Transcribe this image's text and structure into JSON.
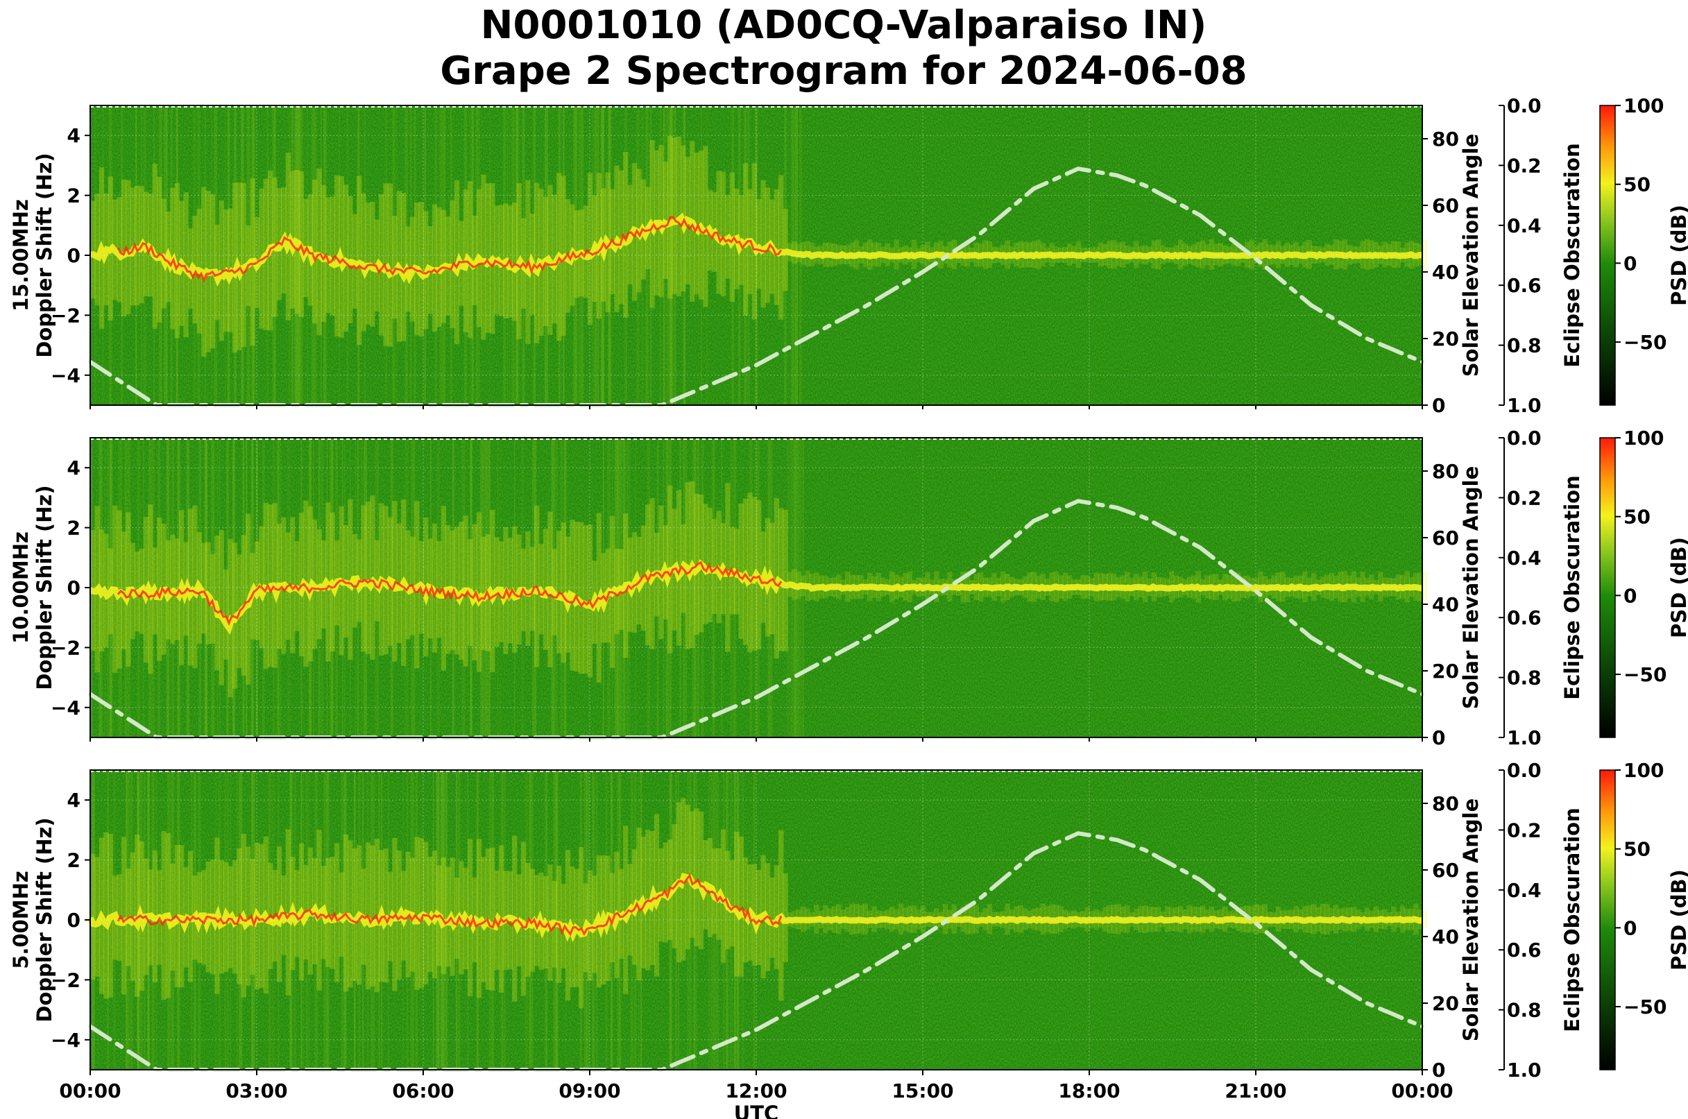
{
  "title": {
    "line1": "N0001010 (AD0CQ-Valparaiso IN)",
    "line2": "Grape 2 Spectrogram for 2024-06-08"
  },
  "colors": {
    "background_green": "#1e8a0a",
    "ridge_yellow": "#f2f21e",
    "peak_red": "#ff2a0a",
    "solar_curve": "#d4e8c8"
  },
  "chart_data": [
    {
      "type": "heatmap",
      "frequency_label": "15.00MHz",
      "ylabel": "15.00MHz\nDoppler Shift (Hz)",
      "ylabel_line1": "15.00MHz",
      "ylabel_line2": "Doppler Shift (Hz)",
      "xlabel": "",
      "ylim": [
        -5,
        5
      ],
      "yticks": [
        "4",
        "2",
        "0",
        "−2",
        "−4"
      ],
      "ytick_values": [
        4,
        2,
        0,
        -2,
        -4
      ],
      "right_axis": {
        "label": "Solar Elevation Angle",
        "ylim": [
          0,
          90
        ],
        "ticks": [
          "80",
          "60",
          "40",
          "20",
          "0"
        ],
        "tick_values": [
          80,
          60,
          40,
          20,
          0
        ]
      },
      "eclipse_axis": {
        "label": "Eclipse Obscuration",
        "ylim": [
          0.0,
          1.0
        ],
        "ticks": [
          "0.0",
          "0.2",
          "0.4",
          "0.6",
          "0.8",
          "1.0"
        ]
      },
      "colorbar": {
        "label": "PSD (dB)",
        "range": [
          -90,
          100
        ],
        "ticks": [
          "100",
          "50",
          "0",
          "−50"
        ],
        "tick_values": [
          100,
          50,
          0,
          -50
        ]
      },
      "doppler_trace_hz": [
        [
          0.5,
          0.1
        ],
        [
          1.0,
          0.3
        ],
        [
          1.5,
          -0.3
        ],
        [
          2.0,
          -0.7
        ],
        [
          2.5,
          -0.6
        ],
        [
          3.0,
          -0.3
        ],
        [
          3.5,
          0.5
        ],
        [
          4.0,
          0.0
        ],
        [
          5.0,
          -0.4
        ],
        [
          6.0,
          -0.6
        ],
        [
          7.0,
          -0.2
        ],
        [
          8.0,
          -0.4
        ],
        [
          9.0,
          0.1
        ],
        [
          10.5,
          1.2
        ],
        [
          11.5,
          0.5
        ],
        [
          12.5,
          0.1
        ],
        [
          13.0,
          0.0
        ],
        [
          24.0,
          0.0
        ]
      ],
      "solar_elevation_deg": [
        [
          0.0,
          13
        ],
        [
          1.2,
          0
        ],
        [
          10.3,
          0
        ],
        [
          12,
          12
        ],
        [
          13,
          21
        ],
        [
          14,
          30
        ],
        [
          15,
          40
        ],
        [
          16,
          51
        ],
        [
          17,
          65
        ],
        [
          17.8,
          71
        ],
        [
          18.5,
          69
        ],
        [
          19,
          66
        ],
        [
          20,
          57
        ],
        [
          21,
          44
        ],
        [
          22,
          30
        ],
        [
          23,
          20
        ],
        [
          24,
          13
        ]
      ]
    },
    {
      "type": "heatmap",
      "frequency_label": "10.00MHz",
      "ylabel_line1": "10.00MHz",
      "ylabel_line2": "Doppler Shift (Hz)",
      "xlabel": "",
      "ylim": [
        -5,
        5
      ],
      "yticks": [
        "4",
        "2",
        "0",
        "−2",
        "−4"
      ],
      "ytick_values": [
        4,
        2,
        0,
        -2,
        -4
      ],
      "right_axis": {
        "label": "Solar Elevation Angle",
        "ylim": [
          0,
          90
        ],
        "ticks": [
          "80",
          "60",
          "40",
          "20",
          "0"
        ],
        "tick_values": [
          80,
          60,
          40,
          20,
          0
        ]
      },
      "eclipse_axis": {
        "label": "Eclipse Obscuration",
        "ylim": [
          0.0,
          1.0
        ],
        "ticks": [
          "0.0",
          "0.2",
          "0.4",
          "0.6",
          "0.8",
          "1.0"
        ]
      },
      "colorbar": {
        "label": "PSD (dB)",
        "range": [
          -90,
          100
        ],
        "ticks": [
          "100",
          "50",
          "0",
          "−50"
        ],
        "tick_values": [
          100,
          50,
          0,
          -50
        ]
      },
      "doppler_trace_hz": [
        [
          0.0,
          -0.2
        ],
        [
          1.0,
          -0.2
        ],
        [
          2.0,
          -0.1
        ],
        [
          2.5,
          -1.2
        ],
        [
          3.0,
          -0.1
        ],
        [
          4.0,
          0.0
        ],
        [
          5.0,
          0.2
        ],
        [
          6.0,
          -0.1
        ],
        [
          7.0,
          -0.3
        ],
        [
          8.0,
          -0.1
        ],
        [
          8.5,
          -0.3
        ],
        [
          9.0,
          -0.6
        ],
        [
          10.0,
          0.3
        ],
        [
          11.0,
          0.7
        ],
        [
          12.0,
          0.3
        ],
        [
          12.5,
          0.1
        ],
        [
          13.0,
          0.0
        ],
        [
          24.0,
          0.0
        ]
      ],
      "solar_elevation_deg": [
        [
          0.0,
          13
        ],
        [
          1.2,
          0
        ],
        [
          10.3,
          0
        ],
        [
          12,
          12
        ],
        [
          13,
          21
        ],
        [
          14,
          30
        ],
        [
          15,
          40
        ],
        [
          16,
          51
        ],
        [
          17,
          65
        ],
        [
          17.8,
          71
        ],
        [
          18.5,
          69
        ],
        [
          19,
          66
        ],
        [
          20,
          57
        ],
        [
          21,
          44
        ],
        [
          22,
          30
        ],
        [
          23,
          20
        ],
        [
          24,
          13
        ]
      ]
    },
    {
      "type": "heatmap",
      "frequency_label": "5.00MHz",
      "ylabel_line1": "5.00MHz",
      "ylabel_line2": "Doppler Shift (Hz)",
      "xlabel": "UTC",
      "ylim": [
        -5,
        5
      ],
      "yticks": [
        "4",
        "2",
        "0",
        "−2",
        "−4"
      ],
      "ytick_values": [
        4,
        2,
        0,
        -2,
        -4
      ],
      "xticks": [
        "00:00",
        "03:00",
        "06:00",
        "09:00",
        "12:00",
        "15:00",
        "18:00",
        "21:00",
        "00:00"
      ],
      "xtick_values_hours": [
        0,
        3,
        6,
        9,
        12,
        15,
        18,
        21,
        24
      ],
      "right_axis": {
        "label": "Solar Elevation Angle",
        "ylim": [
          0,
          90
        ],
        "ticks": [
          "80",
          "60",
          "40",
          "20",
          "0"
        ],
        "tick_values": [
          80,
          60,
          40,
          20,
          0
        ]
      },
      "eclipse_axis": {
        "label": "Eclipse Obscuration",
        "ylim": [
          0.0,
          1.0
        ],
        "ticks": [
          "0.0",
          "0.2",
          "0.4",
          "0.6",
          "0.8",
          "1.0"
        ]
      },
      "colorbar": {
        "label": "PSD (dB)",
        "range": [
          -90,
          100
        ],
        "ticks": [
          "100",
          "50",
          "0",
          "−50"
        ],
        "tick_values": [
          100,
          50,
          0,
          -50
        ]
      },
      "doppler_trace_hz": [
        [
          0.0,
          0.0
        ],
        [
          2.0,
          0.0
        ],
        [
          3.0,
          0.0
        ],
        [
          4.0,
          0.2
        ],
        [
          5.0,
          0.0
        ],
        [
          6.0,
          0.1
        ],
        [
          7.0,
          -0.1
        ],
        [
          8.0,
          -0.1
        ],
        [
          8.8,
          -0.4
        ],
        [
          9.5,
          0.1
        ],
        [
          10.3,
          0.8
        ],
        [
          10.8,
          1.4
        ],
        [
          11.5,
          0.5
        ],
        [
          12.0,
          0.0
        ],
        [
          24.0,
          0.0
        ]
      ],
      "solar_elevation_deg": [
        [
          0.0,
          13
        ],
        [
          1.2,
          0
        ],
        [
          10.3,
          0
        ],
        [
          12,
          12
        ],
        [
          13,
          21
        ],
        [
          14,
          30
        ],
        [
          15,
          40
        ],
        [
          16,
          51
        ],
        [
          17,
          65
        ],
        [
          17.8,
          71
        ],
        [
          18.5,
          69
        ],
        [
          19,
          66
        ],
        [
          20,
          57
        ],
        [
          21,
          44
        ],
        [
          22,
          30
        ],
        [
          23,
          20
        ],
        [
          24,
          13
        ]
      ]
    }
  ]
}
